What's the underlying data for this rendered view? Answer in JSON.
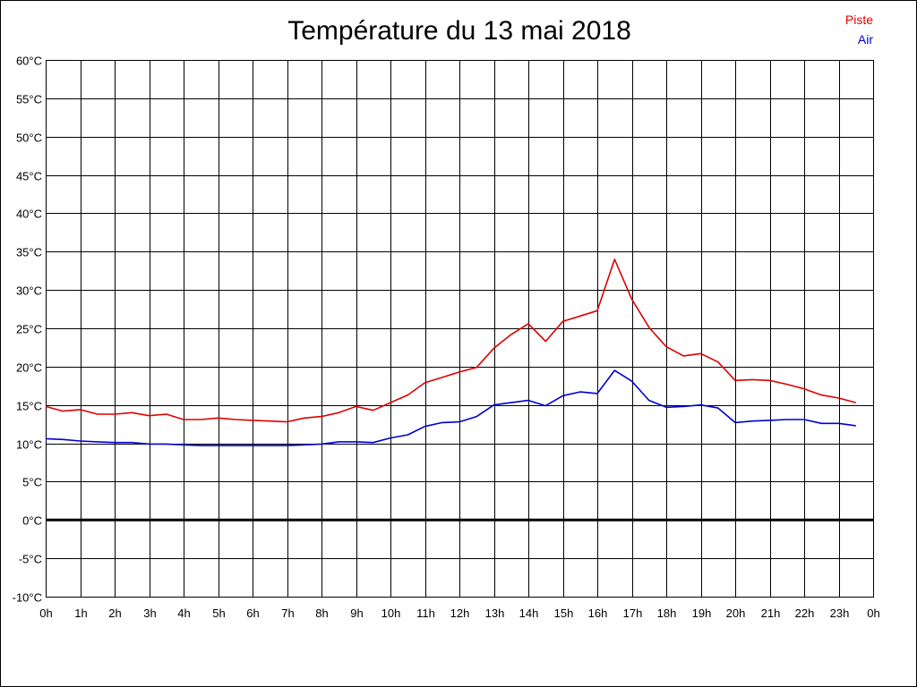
{
  "chart_data": {
    "type": "line",
    "title": "Température du 13 mai 2018",
    "xlabel": "",
    "ylabel": "",
    "x_ticks": [
      "0h",
      "1h",
      "2h",
      "3h",
      "4h",
      "5h",
      "6h",
      "7h",
      "8h",
      "9h",
      "10h",
      "11h",
      "12h",
      "13h",
      "14h",
      "15h",
      "16h",
      "17h",
      "18h",
      "19h",
      "20h",
      "21h",
      "22h",
      "23h",
      "0h"
    ],
    "y_ticks": [
      "60°C",
      "55°C",
      "50°C",
      "45°C",
      "40°C",
      "35°C",
      "30°C",
      "25°C",
      "20°C",
      "15°C",
      "10°C",
      "5°C",
      "0°C",
      "-5°C",
      "-10°C"
    ],
    "xlim": [
      0,
      24
    ],
    "ylim": [
      -10,
      60
    ],
    "grid": true,
    "legend_position": "top-right",
    "x": [
      0,
      0.5,
      1,
      1.5,
      2,
      2.5,
      3,
      3.5,
      4,
      4.5,
      5,
      5.5,
      6,
      6.5,
      7,
      7.5,
      8,
      8.5,
      9,
      9.5,
      10,
      10.5,
      11,
      11.5,
      12,
      12.5,
      13,
      13.5,
      14,
      14.5,
      15,
      15.5,
      16,
      16.5,
      17,
      17.5,
      18,
      18.5,
      19,
      19.5,
      20,
      20.5,
      21,
      21.5,
      22,
      22.5,
      23,
      23.5
    ],
    "series": [
      {
        "name": "Piste",
        "color": "#dd0000",
        "values": [
          14.8,
          14.2,
          14.4,
          13.8,
          13.8,
          14.0,
          13.6,
          13.8,
          13.1,
          13.1,
          13.3,
          13.1,
          13.0,
          12.9,
          12.8,
          13.3,
          13.5,
          14.0,
          14.8,
          14.3,
          15.3,
          16.3,
          17.9,
          18.6,
          19.3,
          19.9,
          22.4,
          24.2,
          25.6,
          23.3,
          25.9,
          26.6,
          27.3,
          34.0,
          28.8,
          25.1,
          22.6,
          21.4,
          21.7,
          20.6,
          18.2,
          18.3,
          18.2,
          17.7,
          17.1,
          16.3,
          15.9,
          15.3
        ]
      },
      {
        "name": "Air",
        "color": "#0000cc",
        "values": [
          10.6,
          10.5,
          10.3,
          10.2,
          10.1,
          10.1,
          9.9,
          9.9,
          9.8,
          9.7,
          9.7,
          9.7,
          9.7,
          9.7,
          9.7,
          9.8,
          9.9,
          10.2,
          10.2,
          10.1,
          10.7,
          11.1,
          12.2,
          12.7,
          12.8,
          13.5,
          15.0,
          15.3,
          15.6,
          14.9,
          16.2,
          16.7,
          16.5,
          19.5,
          18.1,
          15.6,
          14.7,
          14.8,
          15.0,
          14.6,
          12.7,
          12.9,
          13.0,
          13.1,
          13.1,
          12.6,
          12.6,
          12.3
        ]
      }
    ],
    "zero_line": true
  },
  "colors": {
    "grid": "#000000",
    "background": "#ffffff",
    "zero_line": "#000000"
  }
}
